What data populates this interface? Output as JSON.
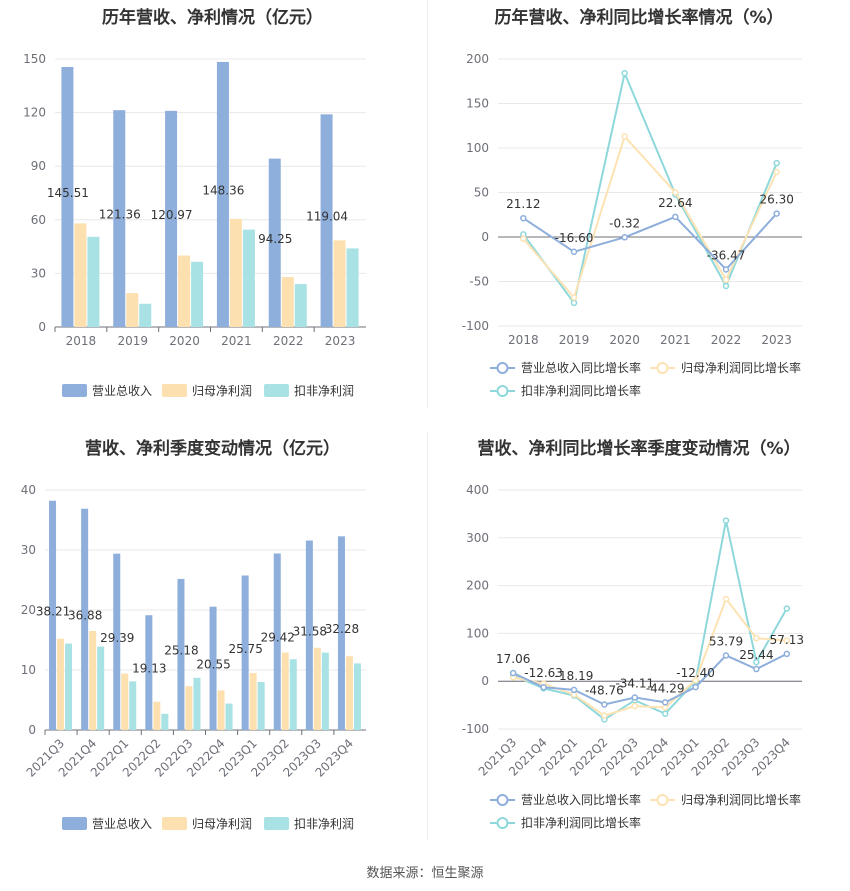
{
  "colors": {
    "revenue": "#8eaedc",
    "parent_profit": "#fce0b0",
    "deducted_profit": "#a9e2e4",
    "revenue_line": "#8eaedc",
    "parent_line": "#fde3b3",
    "deducted_line": "#8ed8dc",
    "grid": "#e8e8e8",
    "axis": "#6e7079"
  },
  "source": "数据来源：恒生聚源",
  "chart_data": [
    {
      "type": "bar",
      "title": "历年营收、净利情况（亿元）",
      "categories": [
        "2018",
        "2019",
        "2020",
        "2021",
        "2022",
        "2023"
      ],
      "ylim": [
        0,
        150
      ],
      "yticks": [
        0,
        30,
        60,
        90,
        120,
        150
      ],
      "series": [
        {
          "name": "营业总收入",
          "values": [
            145.51,
            121.36,
            120.97,
            148.36,
            94.25,
            119.04
          ],
          "labels": [
            "145.51",
            "121.36",
            "120.97",
            "148.36",
            "94.25",
            "119.04"
          ]
        },
        {
          "name": "归母净利润",
          "values": [
            58,
            19,
            40,
            60.5,
            28,
            48.5
          ]
        },
        {
          "name": "扣非净利润",
          "values": [
            50.5,
            13,
            36.5,
            54.5,
            24,
            44
          ]
        }
      ],
      "legend": "bottom"
    },
    {
      "type": "line",
      "title": "历年营收、净利同比增长率情况（%）",
      "categories": [
        "2018",
        "2019",
        "2020",
        "2021",
        "2022",
        "2023"
      ],
      "ylim": [
        -100,
        200
      ],
      "yticks": [
        -100,
        -50,
        0,
        50,
        100,
        150,
        200
      ],
      "series": [
        {
          "name": "营业总收入同比增长率",
          "values": [
            21.12,
            -16.6,
            -0.32,
            22.64,
            -36.47,
            26.3
          ],
          "labels": [
            "21.12",
            "-16.60",
            "-0.32",
            "22.64",
            "-36.47",
            "26.30"
          ]
        },
        {
          "name": "归母净利润同比增长率",
          "values": [
            -2,
            -68,
            113,
            50,
            -48,
            73
          ]
        },
        {
          "name": "扣非净利润同比增长率",
          "values": [
            3,
            -74,
            184,
            48,
            -55,
            83
          ]
        }
      ],
      "legend": "bottom"
    },
    {
      "type": "bar",
      "title": "营收、净利季度变动情况（亿元）",
      "categories": [
        "2021Q3",
        "2021Q4",
        "2022Q1",
        "2022Q2",
        "2022Q3",
        "2022Q4",
        "2023Q1",
        "2023Q2",
        "2023Q3",
        "2023Q4"
      ],
      "ylim": [
        0,
        40
      ],
      "yticks": [
        0,
        10,
        20,
        30,
        40
      ],
      "series": [
        {
          "name": "营业总收入",
          "values": [
            38.21,
            36.88,
            29.39,
            19.13,
            25.18,
            20.55,
            25.75,
            29.42,
            31.58,
            32.28
          ],
          "labels": [
            "38.21",
            "36.88",
            "29.39",
            "19.13",
            "25.18",
            "20.55",
            "25.75",
            "29.42",
            "31.58",
            "32.28"
          ]
        },
        {
          "name": "归母净利润",
          "values": [
            15.2,
            16.5,
            9.4,
            4.7,
            7.3,
            6.6,
            9.5,
            12.9,
            13.7,
            12.3
          ]
        },
        {
          "name": "扣非净利润",
          "values": [
            14.4,
            13.9,
            8.1,
            2.7,
            8.7,
            4.4,
            8.0,
            11.8,
            12.9,
            11.1
          ]
        }
      ],
      "legend": "bottom"
    },
    {
      "type": "line",
      "title": "营收、净利同比增长率季度变动情况（%）",
      "categories": [
        "2021Q3",
        "2021Q4",
        "2022Q1",
        "2022Q2",
        "2022Q3",
        "2022Q4",
        "2023Q1",
        "2023Q2",
        "2023Q3",
        "2023Q4"
      ],
      "ylim": [
        -100,
        400
      ],
      "yticks": [
        -100,
        0,
        100,
        200,
        300,
        400
      ],
      "series": [
        {
          "name": "营业总收入同比增长率",
          "values": [
            17.06,
            -12.63,
            -18.19,
            -48.76,
            -34.11,
            -44.29,
            -12.4,
            53.79,
            25.44,
            57.13
          ],
          "labels": [
            "17.06",
            "-12.63",
            "-18.19",
            "-48.76",
            "-34.11",
            "-44.29",
            "-12.40",
            "53.79",
            "25.44",
            "57.13"
          ]
        },
        {
          "name": "归母净利润同比增长率",
          "values": [
            8,
            -5,
            -28,
            -72,
            -52,
            -55,
            2,
            172,
            90,
            85
          ]
        },
        {
          "name": "扣非净利润同比增长率",
          "values": [
            12,
            -15,
            -30,
            -80,
            -40,
            -68,
            0,
            336,
            40,
            152
          ]
        }
      ],
      "legend": "bottom"
    }
  ]
}
